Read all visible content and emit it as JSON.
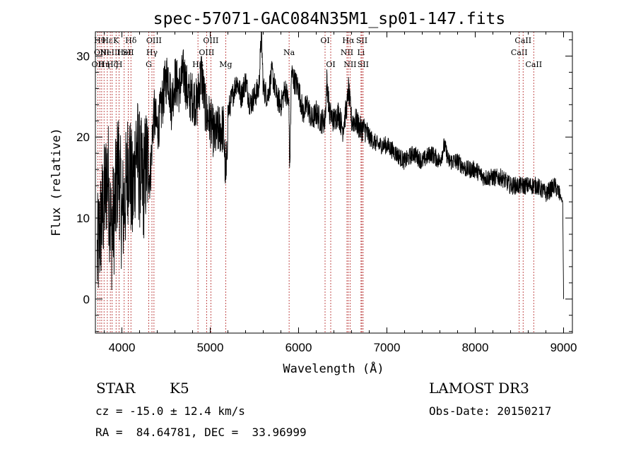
{
  "chart_data": {
    "type": "line",
    "title": "spec-57071-GAC084N35M1_sp01-147.fits",
    "xlabel": "Wavelength (Å)",
    "ylabel": "Flux (relative)",
    "xlim": [
      3700,
      9100
    ],
    "ylim": [
      -4.2,
      33
    ],
    "xticks": [
      4000,
      5000,
      6000,
      7000,
      8000,
      9000
    ],
    "yticks": [
      0,
      10,
      20,
      30
    ],
    "spectrum": {
      "x": [
        3720,
        3760,
        3800,
        3840,
        3880,
        3920,
        3960,
        4000,
        4040,
        4080,
        4120,
        4160,
        4200,
        4240,
        4280,
        4320,
        4360,
        4400,
        4440,
        4480,
        4520,
        4560,
        4600,
        4650,
        4700,
        4750,
        4800,
        4850,
        4900,
        4950,
        5000,
        5050,
        5100,
        5150,
        5180,
        5200,
        5250,
        5300,
        5350,
        5400,
        5450,
        5500,
        5550,
        5580,
        5600,
        5650,
        5700,
        5750,
        5800,
        5850,
        5890,
        5900,
        5920,
        5950,
        6000,
        6050,
        6100,
        6150,
        6200,
        6250,
        6300,
        6320,
        6350,
        6400,
        6450,
        6500,
        6550,
        6565,
        6600,
        6650,
        6700,
        6750,
        6800,
        6900,
        7000,
        7100,
        7200,
        7300,
        7400,
        7500,
        7600,
        7650,
        7700,
        7800,
        7900,
        8000,
        8100,
        8200,
        8300,
        8400,
        8500,
        8550,
        8600,
        8700,
        8800,
        8900,
        8950,
        8990,
        9000
      ],
      "y": [
        5,
        9,
        12,
        16,
        8,
        11,
        17,
        10,
        13,
        18,
        12,
        19,
        16,
        14,
        17,
        15,
        23,
        21,
        23,
        26,
        28,
        24,
        27,
        26,
        28,
        25,
        25,
        24,
        28,
        23,
        22,
        20,
        21,
        21,
        14,
        23,
        25,
        27,
        25,
        27,
        24,
        25,
        26,
        33,
        26,
        25,
        28,
        25,
        24,
        26,
        24,
        16,
        28,
        27,
        26,
        23,
        24,
        22,
        23,
        22,
        22,
        27,
        23,
        22,
        23,
        21,
        24,
        26,
        22,
        22,
        21,
        21,
        20,
        19,
        19,
        18,
        17,
        18,
        17,
        18,
        17,
        19,
        17,
        17,
        16,
        16,
        15,
        15,
        15,
        14,
        14,
        14,
        14,
        14,
        13,
        14,
        13,
        12,
        0
      ]
    },
    "lines": [
      {
        "w": 3727,
        "row": 2,
        "label": "OII"
      },
      {
        "w": 3750,
        "row": 0,
        "label": "Hθ"
      },
      {
        "w": 3771,
        "row": 1,
        "label": "OIII"
      },
      {
        "w": 3798,
        "row": 2,
        "label": "Hη"
      },
      {
        "w": 3835,
        "row": 0,
        "label": "Hε"
      },
      {
        "w": 3869,
        "row": 1,
        "label": "NeIII"
      },
      {
        "w": 3890,
        "row": 2,
        "label": "Hζ"
      },
      {
        "w": 3934,
        "row": 0,
        "label": "K"
      },
      {
        "w": 3968,
        "row": 2,
        "label": "H"
      },
      {
        "w": 4026,
        "row": 1,
        "label": "HeI"
      },
      {
        "w": 4072,
        "row": 1,
        "label": "SII"
      },
      {
        "w": 4102,
        "row": 0,
        "label": "Hδ"
      },
      {
        "w": 4304,
        "row": 2,
        "label": "G"
      },
      {
        "w": 4340,
        "row": 1,
        "label": "Hγ"
      },
      {
        "w": 4363,
        "row": 0,
        "label": "OIII"
      },
      {
        "w": 4861,
        "row": 2,
        "label": "Hβ"
      },
      {
        "w": 4959,
        "row": 1,
        "label": "OIII"
      },
      {
        "w": 5007,
        "row": 0,
        "label": "OIII"
      },
      {
        "w": 5175,
        "row": 2,
        "label": "Mg"
      },
      {
        "w": 5893,
        "row": 1,
        "label": "Na"
      },
      {
        "w": 6300,
        "row": 0,
        "label": "OI"
      },
      {
        "w": 6364,
        "row": 2,
        "label": "OI"
      },
      {
        "w": 6548,
        "row": 1,
        "label": "NII"
      },
      {
        "w": 6563,
        "row": 0,
        "label": "Hα"
      },
      {
        "w": 6583,
        "row": 2,
        "label": "NII"
      },
      {
        "w": 6707,
        "row": 1,
        "label": "Li"
      },
      {
        "w": 6716,
        "row": 0,
        "label": "SII"
      },
      {
        "w": 6731,
        "row": 2,
        "label": "SII"
      },
      {
        "w": 8498,
        "row": 1,
        "label": "CaII"
      },
      {
        "w": 8542,
        "row": 0,
        "label": "CaII"
      },
      {
        "w": 8662,
        "row": 2,
        "label": "CaII"
      }
    ]
  },
  "info": {
    "class_label": "STAR",
    "subclass": "K5",
    "redshift": "cz = -15.0 ± 12.4 km/s",
    "coords": "RA =  84.64781, DEC =  33.96999",
    "survey": "LAMOST DR3",
    "obs_date": "Obs-Date: 20150217"
  }
}
